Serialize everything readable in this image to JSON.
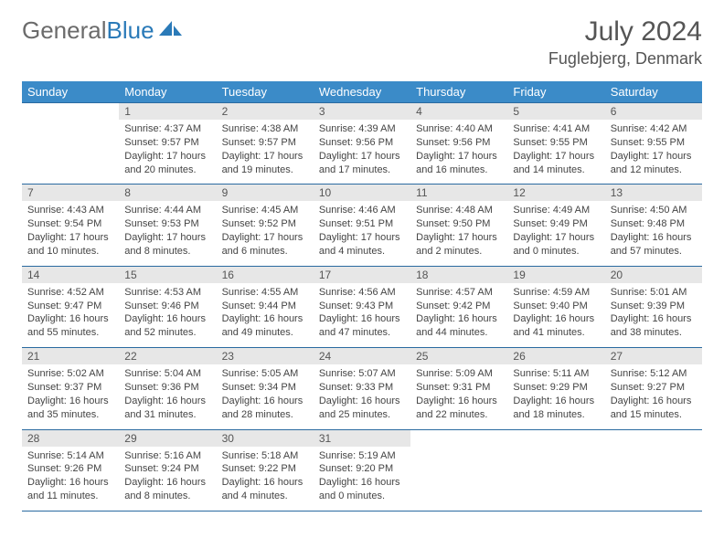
{
  "brand": {
    "name_part1": "General",
    "name_part2": "Blue",
    "text_color_gray": "#6b6b6b",
    "text_color_blue": "#2a7ab8",
    "icon_color": "#2a7ab8"
  },
  "header": {
    "month_title": "July 2024",
    "location": "Fuglebjerg, Denmark"
  },
  "theme": {
    "header_bg": "#3b8bc8",
    "header_fg": "#ffffff",
    "daynum_bg": "#e7e7e7",
    "rule_color": "#2a6aa0",
    "body_text": "#444444"
  },
  "weekdays": [
    "Sunday",
    "Monday",
    "Tuesday",
    "Wednesday",
    "Thursday",
    "Friday",
    "Saturday"
  ],
  "weeks": [
    [
      {
        "n": "",
        "lines": [
          "",
          "",
          ""
        ]
      },
      {
        "n": "1",
        "lines": [
          "Sunrise: 4:37 AM",
          "Sunset: 9:57 PM",
          "Daylight: 17 hours and 20 minutes."
        ]
      },
      {
        "n": "2",
        "lines": [
          "Sunrise: 4:38 AM",
          "Sunset: 9:57 PM",
          "Daylight: 17 hours and 19 minutes."
        ]
      },
      {
        "n": "3",
        "lines": [
          "Sunrise: 4:39 AM",
          "Sunset: 9:56 PM",
          "Daylight: 17 hours and 17 minutes."
        ]
      },
      {
        "n": "4",
        "lines": [
          "Sunrise: 4:40 AM",
          "Sunset: 9:56 PM",
          "Daylight: 17 hours and 16 minutes."
        ]
      },
      {
        "n": "5",
        "lines": [
          "Sunrise: 4:41 AM",
          "Sunset: 9:55 PM",
          "Daylight: 17 hours and 14 minutes."
        ]
      },
      {
        "n": "6",
        "lines": [
          "Sunrise: 4:42 AM",
          "Sunset: 9:55 PM",
          "Daylight: 17 hours and 12 minutes."
        ]
      }
    ],
    [
      {
        "n": "7",
        "lines": [
          "Sunrise: 4:43 AM",
          "Sunset: 9:54 PM",
          "Daylight: 17 hours and 10 minutes."
        ]
      },
      {
        "n": "8",
        "lines": [
          "Sunrise: 4:44 AM",
          "Sunset: 9:53 PM",
          "Daylight: 17 hours and 8 minutes."
        ]
      },
      {
        "n": "9",
        "lines": [
          "Sunrise: 4:45 AM",
          "Sunset: 9:52 PM",
          "Daylight: 17 hours and 6 minutes."
        ]
      },
      {
        "n": "10",
        "lines": [
          "Sunrise: 4:46 AM",
          "Sunset: 9:51 PM",
          "Daylight: 17 hours and 4 minutes."
        ]
      },
      {
        "n": "11",
        "lines": [
          "Sunrise: 4:48 AM",
          "Sunset: 9:50 PM",
          "Daylight: 17 hours and 2 minutes."
        ]
      },
      {
        "n": "12",
        "lines": [
          "Sunrise: 4:49 AM",
          "Sunset: 9:49 PM",
          "Daylight: 17 hours and 0 minutes."
        ]
      },
      {
        "n": "13",
        "lines": [
          "Sunrise: 4:50 AM",
          "Sunset: 9:48 PM",
          "Daylight: 16 hours and 57 minutes."
        ]
      }
    ],
    [
      {
        "n": "14",
        "lines": [
          "Sunrise: 4:52 AM",
          "Sunset: 9:47 PM",
          "Daylight: 16 hours and 55 minutes."
        ]
      },
      {
        "n": "15",
        "lines": [
          "Sunrise: 4:53 AM",
          "Sunset: 9:46 PM",
          "Daylight: 16 hours and 52 minutes."
        ]
      },
      {
        "n": "16",
        "lines": [
          "Sunrise: 4:55 AM",
          "Sunset: 9:44 PM",
          "Daylight: 16 hours and 49 minutes."
        ]
      },
      {
        "n": "17",
        "lines": [
          "Sunrise: 4:56 AM",
          "Sunset: 9:43 PM",
          "Daylight: 16 hours and 47 minutes."
        ]
      },
      {
        "n": "18",
        "lines": [
          "Sunrise: 4:57 AM",
          "Sunset: 9:42 PM",
          "Daylight: 16 hours and 44 minutes."
        ]
      },
      {
        "n": "19",
        "lines": [
          "Sunrise: 4:59 AM",
          "Sunset: 9:40 PM",
          "Daylight: 16 hours and 41 minutes."
        ]
      },
      {
        "n": "20",
        "lines": [
          "Sunrise: 5:01 AM",
          "Sunset: 9:39 PM",
          "Daylight: 16 hours and 38 minutes."
        ]
      }
    ],
    [
      {
        "n": "21",
        "lines": [
          "Sunrise: 5:02 AM",
          "Sunset: 9:37 PM",
          "Daylight: 16 hours and 35 minutes."
        ]
      },
      {
        "n": "22",
        "lines": [
          "Sunrise: 5:04 AM",
          "Sunset: 9:36 PM",
          "Daylight: 16 hours and 31 minutes."
        ]
      },
      {
        "n": "23",
        "lines": [
          "Sunrise: 5:05 AM",
          "Sunset: 9:34 PM",
          "Daylight: 16 hours and 28 minutes."
        ]
      },
      {
        "n": "24",
        "lines": [
          "Sunrise: 5:07 AM",
          "Sunset: 9:33 PM",
          "Daylight: 16 hours and 25 minutes."
        ]
      },
      {
        "n": "25",
        "lines": [
          "Sunrise: 5:09 AM",
          "Sunset: 9:31 PM",
          "Daylight: 16 hours and 22 minutes."
        ]
      },
      {
        "n": "26",
        "lines": [
          "Sunrise: 5:11 AM",
          "Sunset: 9:29 PM",
          "Daylight: 16 hours and 18 minutes."
        ]
      },
      {
        "n": "27",
        "lines": [
          "Sunrise: 5:12 AM",
          "Sunset: 9:27 PM",
          "Daylight: 16 hours and 15 minutes."
        ]
      }
    ],
    [
      {
        "n": "28",
        "lines": [
          "Sunrise: 5:14 AM",
          "Sunset: 9:26 PM",
          "Daylight: 16 hours and 11 minutes."
        ]
      },
      {
        "n": "29",
        "lines": [
          "Sunrise: 5:16 AM",
          "Sunset: 9:24 PM",
          "Daylight: 16 hours and 8 minutes."
        ]
      },
      {
        "n": "30",
        "lines": [
          "Sunrise: 5:18 AM",
          "Sunset: 9:22 PM",
          "Daylight: 16 hours and 4 minutes."
        ]
      },
      {
        "n": "31",
        "lines": [
          "Sunrise: 5:19 AM",
          "Sunset: 9:20 PM",
          "Daylight: 16 hours and 0 minutes."
        ]
      },
      {
        "n": "",
        "lines": [
          "",
          "",
          ""
        ]
      },
      {
        "n": "",
        "lines": [
          "",
          "",
          ""
        ]
      },
      {
        "n": "",
        "lines": [
          "",
          "",
          ""
        ]
      }
    ]
  ]
}
